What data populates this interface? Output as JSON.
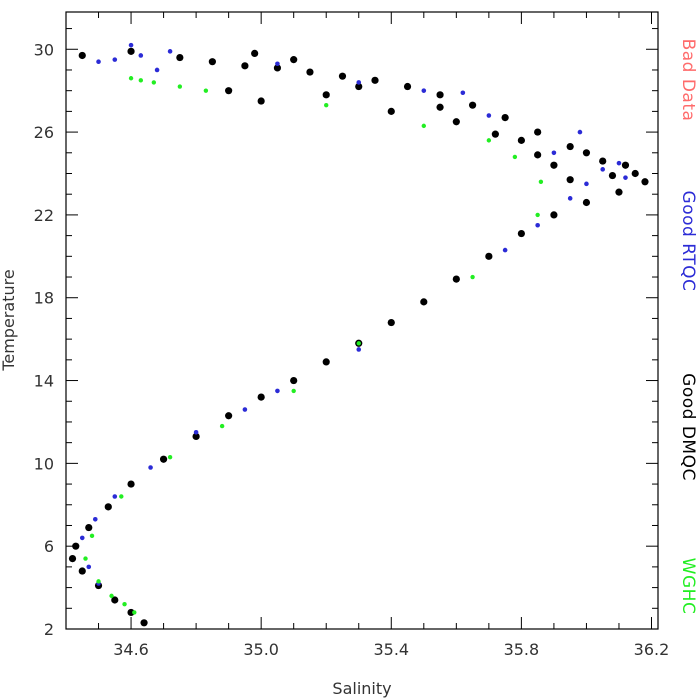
{
  "chart_data": {
    "type": "scatter",
    "xlabel": "Salinity",
    "ylabel": "Temperature",
    "xlim": [
      34.4,
      36.22
    ],
    "ylim": [
      2,
      31.8
    ],
    "x_ticks": [
      34.6,
      35.0,
      35.4,
      35.8,
      36.2
    ],
    "x_tick_labels": [
      "34.6",
      "35.0",
      "35.4",
      "35.8",
      "36.2"
    ],
    "y_ticks": [
      2,
      6,
      10,
      14,
      18,
      22,
      26,
      30
    ],
    "y_tick_labels": [
      "2",
      "6",
      "10",
      "14",
      "18",
      "22",
      "26",
      "30"
    ],
    "grid": false,
    "legend_placement": "right, rotated vertical",
    "series": [
      {
        "name": "Bad Data",
        "color": "#ff6b6b",
        "values": []
      },
      {
        "name": "Good RTQC",
        "color": "#2b2bd6",
        "points": [
          [
            34.5,
            29.4
          ],
          [
            34.55,
            29.5
          ],
          [
            34.6,
            30.2
          ],
          [
            34.63,
            29.7
          ],
          [
            34.68,
            29.0
          ],
          [
            34.72,
            29.9
          ],
          [
            35.05,
            29.3
          ],
          [
            35.5,
            28.0
          ],
          [
            35.7,
            26.8
          ],
          [
            35.9,
            25.0
          ],
          [
            36.05,
            24.2
          ],
          [
            36.0,
            23.5
          ],
          [
            35.95,
            22.8
          ],
          [
            35.85,
            21.5
          ],
          [
            35.75,
            20.3
          ],
          [
            35.3,
            15.5
          ],
          [
            35.05,
            13.5
          ],
          [
            34.95,
            12.6
          ],
          [
            34.8,
            11.5
          ],
          [
            34.66,
            9.8
          ],
          [
            34.55,
            8.4
          ],
          [
            34.49,
            7.3
          ],
          [
            34.45,
            6.4
          ],
          [
            34.47,
            5.0
          ],
          [
            34.5,
            4.2
          ],
          [
            36.1,
            24.5
          ],
          [
            36.12,
            23.8
          ],
          [
            35.98,
            26.0
          ],
          [
            35.62,
            27.9
          ],
          [
            35.3,
            28.4
          ]
        ]
      },
      {
        "name": "Good DMQC",
        "color": "#000000",
        "points": [
          [
            34.45,
            29.7
          ],
          [
            34.6,
            29.9
          ],
          [
            34.75,
            29.6
          ],
          [
            34.85,
            29.4
          ],
          [
            34.95,
            29.2
          ],
          [
            35.05,
            29.1
          ],
          [
            35.15,
            28.9
          ],
          [
            35.25,
            28.7
          ],
          [
            35.35,
            28.5
          ],
          [
            35.45,
            28.2
          ],
          [
            35.55,
            27.8
          ],
          [
            35.65,
            27.3
          ],
          [
            35.75,
            26.7
          ],
          [
            35.85,
            26.0
          ],
          [
            35.95,
            25.3
          ],
          [
            36.05,
            24.6
          ],
          [
            36.15,
            24.0
          ],
          [
            36.18,
            23.6
          ],
          [
            36.1,
            23.1
          ],
          [
            36.0,
            22.6
          ],
          [
            35.9,
            22.0
          ],
          [
            35.8,
            21.1
          ],
          [
            35.7,
            20.0
          ],
          [
            35.6,
            18.9
          ],
          [
            35.5,
            17.8
          ],
          [
            35.4,
            16.8
          ],
          [
            35.3,
            15.8
          ],
          [
            35.2,
            14.9
          ],
          [
            35.1,
            14.0
          ],
          [
            35.0,
            13.2
          ],
          [
            34.9,
            12.3
          ],
          [
            34.8,
            11.3
          ],
          [
            34.7,
            10.2
          ],
          [
            34.6,
            9.0
          ],
          [
            34.53,
            7.9
          ],
          [
            34.47,
            6.9
          ],
          [
            34.43,
            6.0
          ],
          [
            34.42,
            5.4
          ],
          [
            34.45,
            4.8
          ],
          [
            34.5,
            4.1
          ],
          [
            34.55,
            3.4
          ],
          [
            34.6,
            2.8
          ],
          [
            34.64,
            2.3
          ],
          [
            34.9,
            28.0
          ],
          [
            35.0,
            27.5
          ],
          [
            35.2,
            27.8
          ],
          [
            35.4,
            27.0
          ],
          [
            35.6,
            26.5
          ],
          [
            35.8,
            25.6
          ],
          [
            35.9,
            24.4
          ],
          [
            36.0,
            25.0
          ],
          [
            36.08,
            23.9
          ],
          [
            35.95,
            23.7
          ],
          [
            35.85,
            24.9
          ],
          [
            35.1,
            29.5
          ],
          [
            34.98,
            29.8
          ],
          [
            35.3,
            28.2
          ],
          [
            35.55,
            27.2
          ],
          [
            35.72,
            25.9
          ],
          [
            36.12,
            24.4
          ]
        ]
      },
      {
        "name": "WGHC",
        "color": "#22ee22",
        "points": [
          [
            34.6,
            28.6
          ],
          [
            34.63,
            28.5
          ],
          [
            34.67,
            28.4
          ],
          [
            34.75,
            28.2
          ],
          [
            34.83,
            28.0
          ],
          [
            35.2,
            27.3
          ],
          [
            35.5,
            26.3
          ],
          [
            35.7,
            25.6
          ],
          [
            35.78,
            24.8
          ],
          [
            35.86,
            23.6
          ],
          [
            35.85,
            22.0
          ],
          [
            35.65,
            19.0
          ],
          [
            35.3,
            15.8
          ],
          [
            35.1,
            13.5
          ],
          [
            34.88,
            11.8
          ],
          [
            34.72,
            10.3
          ],
          [
            34.57,
            8.4
          ],
          [
            34.48,
            6.5
          ],
          [
            34.46,
            5.4
          ],
          [
            34.5,
            4.3
          ],
          [
            34.54,
            3.6
          ],
          [
            34.58,
            3.2
          ],
          [
            34.61,
            2.8
          ]
        ]
      }
    ]
  }
}
